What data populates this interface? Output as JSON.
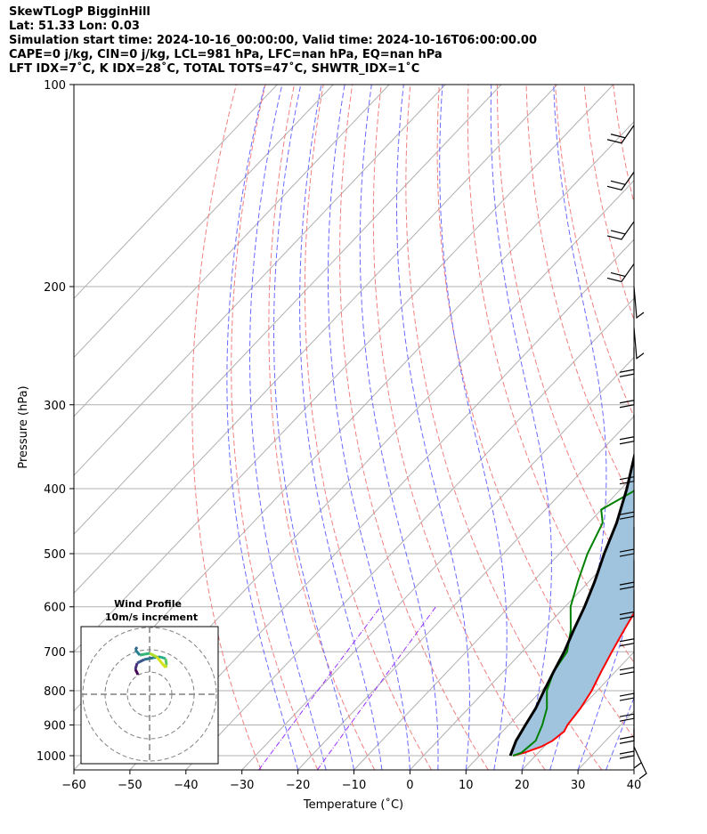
{
  "header": {
    "line1": "SkewTLogP BigginHill",
    "line2": "Lat: 51.33   Lon: 0.03",
    "line3": "Simulation start time: 2024-10-16_00:00:00, Valid time: 2024-10-16T06:00:00.00",
    "line4": "CAPE=0 j/kg, CIN=0 j/kg, LCL=981 hPa, LFC=nan hPa, EQ=nan hPa",
    "line5": "LFT IDX=7˚C, K IDX=28˚C, TOTAL TOTS=47˚C, SHWTR_IDX=1˚C"
  },
  "chart_data": {
    "type": "line",
    "subtype": "skew-T log-P diagram",
    "xlabel": "Temperature (˚C)",
    "ylabel": "Pressure (hPa)",
    "xlim": [
      -60,
      40
    ],
    "ylim": [
      1050,
      100
    ],
    "yscale": "log",
    "xticks": [
      -60,
      -50,
      -40,
      -30,
      -20,
      -10,
      0,
      10,
      20,
      30,
      40
    ],
    "yticks": [
      1000,
      900,
      800,
      700,
      600,
      500,
      400,
      300,
      200,
      100
    ],
    "grid": true,
    "colors": {
      "temperature": "#ff0000",
      "dewpoint": "#008000",
      "parcel": "#000000",
      "fill": "#a0c4de",
      "isotherms": "#b0b0b0",
      "dry_adiabats": "#f08080",
      "moist_adiabats": "#6a6aff",
      "mixing_ratio": "#9b30ff"
    },
    "series": [
      {
        "role": "temperature",
        "points": [
          [
            1000,
            16
          ],
          [
            990,
            17.5
          ],
          [
            970,
            19.5
          ],
          [
            950,
            20.5
          ],
          [
            920,
            21
          ],
          [
            900,
            20.5
          ],
          [
            850,
            20
          ],
          [
            800,
            19
          ],
          [
            750,
            17.5
          ],
          [
            700,
            16
          ],
          [
            650,
            14.5
          ],
          [
            600,
            13
          ],
          [
            550,
            11
          ],
          [
            500,
            9
          ],
          [
            450,
            7
          ],
          [
            400,
            2
          ],
          [
            350,
            -3.5
          ],
          [
            300,
            -10
          ],
          [
            250,
            -18
          ],
          [
            220,
            -23
          ],
          [
            200,
            -28
          ],
          [
            190,
            -27
          ],
          [
            180,
            -25
          ],
          [
            170,
            -24.5
          ],
          [
            160,
            -24
          ],
          [
            150,
            -23.5
          ],
          [
            140,
            -24
          ],
          [
            130,
            -25.5
          ],
          [
            120,
            -28
          ],
          [
            110,
            -29.5
          ],
          [
            100,
            -29
          ]
        ]
      },
      {
        "role": "dewpoint",
        "points": [
          [
            1000,
            16
          ],
          [
            990,
            17
          ],
          [
            950,
            17.5
          ],
          [
            900,
            16
          ],
          [
            850,
            14
          ],
          [
            800,
            11
          ],
          [
            750,
            9
          ],
          [
            700,
            8
          ],
          [
            650,
            5
          ],
          [
            600,
            1
          ],
          [
            550,
            -2
          ],
          [
            500,
            -5
          ],
          [
            450,
            -7.5
          ],
          [
            430,
            -10
          ],
          [
            400,
            -7
          ],
          [
            370,
            -8
          ],
          [
            350,
            -10
          ],
          [
            300,
            -17
          ],
          [
            250,
            -25
          ],
          [
            220,
            -30
          ],
          [
            200,
            -32
          ],
          [
            185,
            -32
          ],
          [
            175,
            -31
          ],
          [
            160,
            -30.5
          ],
          [
            150,
            -31
          ],
          [
            140,
            -34
          ],
          [
            130,
            -38
          ],
          [
            120,
            -36
          ],
          [
            110,
            -37
          ],
          [
            100,
            -39
          ]
        ]
      },
      {
        "role": "parcel",
        "points": [
          [
            1000,
            15.5
          ],
          [
            950,
            14
          ],
          [
            900,
            13
          ],
          [
            850,
            12
          ],
          [
            800,
            10.5
          ],
          [
            750,
            9
          ],
          [
            700,
            7.5
          ],
          [
            650,
            5.5
          ],
          [
            600,
            3.5
          ],
          [
            550,
            1
          ],
          [
            500,
            -2
          ],
          [
            450,
            -5
          ],
          [
            400,
            -9
          ],
          [
            350,
            -14
          ],
          [
            300,
            -20
          ],
          [
            250,
            -27
          ],
          [
            200,
            -36
          ],
          [
            150,
            -46
          ],
          [
            100,
            -60
          ]
        ]
      }
    ],
    "wind_profile": {
      "title": "Wind Profile",
      "subtitle": "10m/s increment"
    }
  }
}
